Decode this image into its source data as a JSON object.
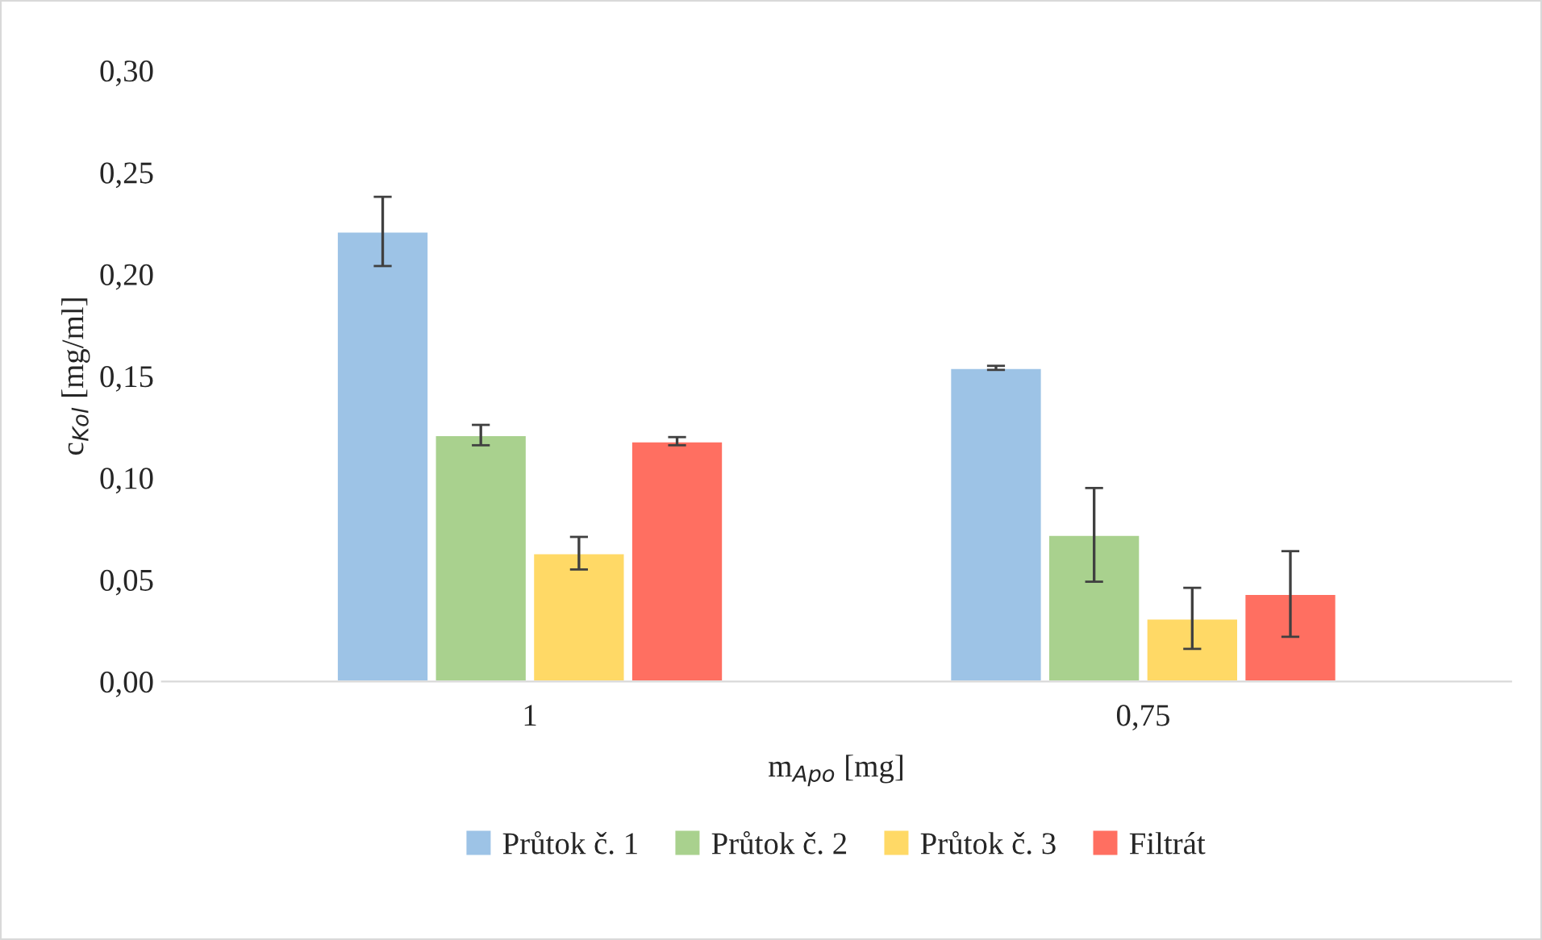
{
  "chart_data": {
    "type": "bar",
    "xlabel": "m$_{Apo}$ [mg]",
    "ylabel": "c$_{Kol}$ [mg/ml]",
    "categories": [
      "1",
      "0,75"
    ],
    "series": [
      {
        "name": "Průtok č. 1",
        "color": "#9dc3e6",
        "values": [
          0.221,
          0.154
        ],
        "errors": [
          0.017,
          0.001
        ]
      },
      {
        "name": "Průtok č. 2",
        "color": "#a9d18e",
        "values": [
          0.121,
          0.072
        ],
        "errors": [
          0.005,
          0.023
        ]
      },
      {
        "name": "Průtok č. 3",
        "color": "#ffd966",
        "values": [
          0.063,
          0.031
        ],
        "errors": [
          0.008,
          0.015
        ]
      },
      {
        "name": "Filtrát",
        "color": "#ff6f61",
        "values": [
          0.118,
          0.043
        ],
        "errors": [
          0.002,
          0.021
        ]
      }
    ],
    "ylim": [
      0,
      0.3
    ],
    "yticks": [
      {
        "value": 0,
        "label": "0,00"
      },
      {
        "value": 0.05,
        "label": "0,05"
      },
      {
        "value": 0.1,
        "label": "0,10"
      },
      {
        "value": 0.15,
        "label": "0,15"
      },
      {
        "value": 0.2,
        "label": "0,20"
      },
      {
        "value": 0.25,
        "label": "0,25"
      },
      {
        "value": 0.3,
        "label": "0,30"
      }
    ],
    "grid": false,
    "legend": "bottom"
  }
}
